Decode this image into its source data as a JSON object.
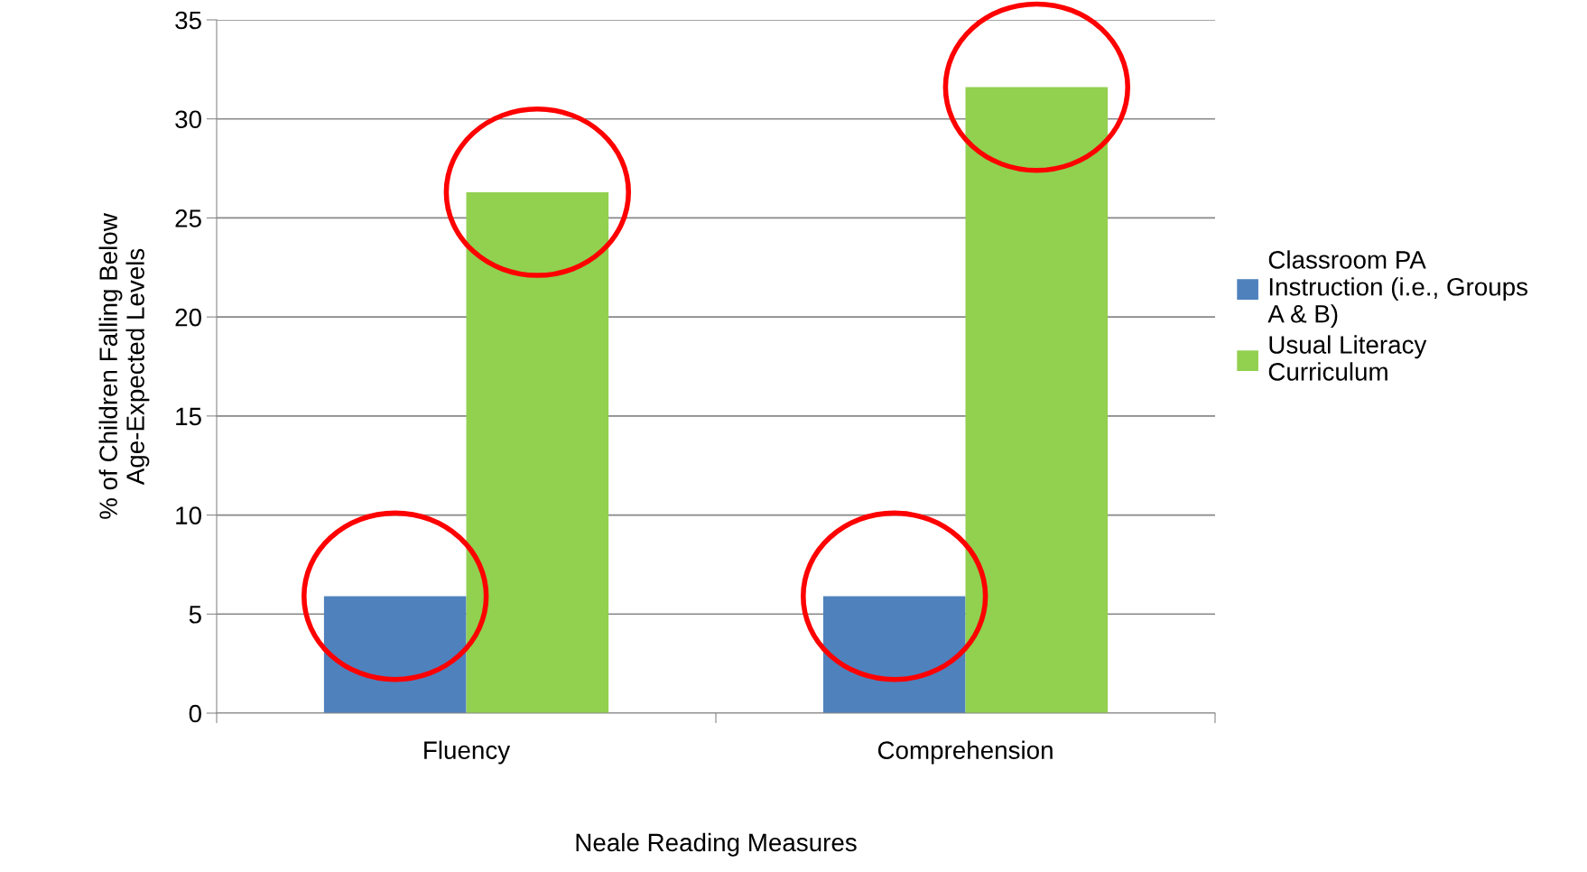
{
  "chart_data": {
    "type": "bar",
    "xlabel": "Neale Reading Measures",
    "ylabel": "% of Children Falling Below\nAge-Expected Levels",
    "categories": [
      "Fluency",
      "Comprehension"
    ],
    "series": [
      {
        "name": "Classroom PA\nInstruction (i.e., Groups\nA & B)",
        "color": "#4f81bd",
        "values": [
          5.9,
          5.9
        ]
      },
      {
        "name": "Usual Literacy\nCurriculum",
        "color": "#92d050",
        "values": [
          26.3,
          31.6
        ]
      }
    ],
    "ylim": [
      0,
      35
    ],
    "yticks": [
      0,
      5,
      10,
      15,
      20,
      25,
      30,
      35
    ],
    "grid": "y",
    "legend": "right"
  }
}
